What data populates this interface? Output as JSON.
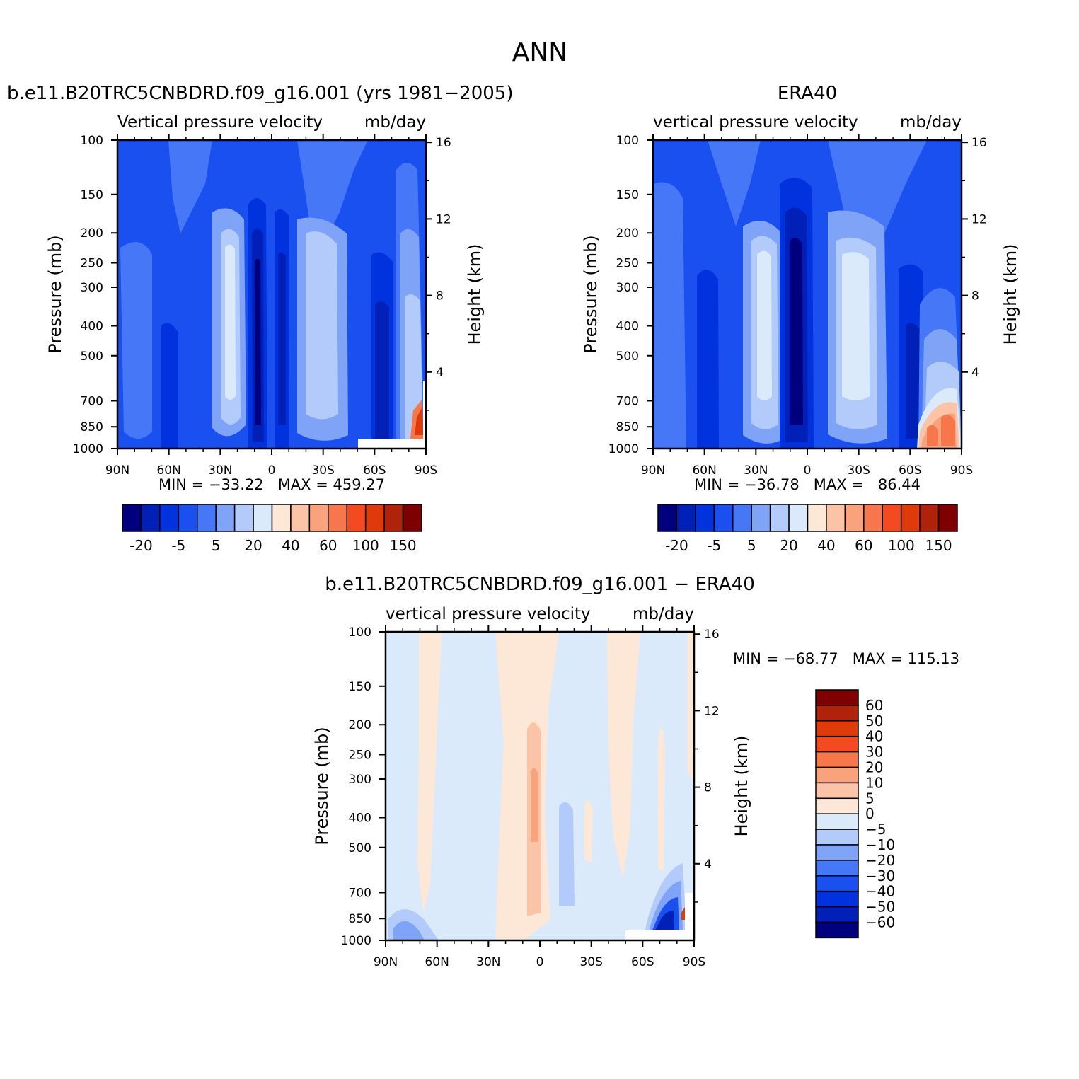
{
  "page_title": "ANN",
  "colors": {
    "scale": [
      "#00007f",
      "#0020b8",
      "#0033dd",
      "#1a4ff0",
      "#4577f7",
      "#7fa3f7",
      "#b3cbfa",
      "#daeafb",
      "#fde8d8",
      "#fcc4a6",
      "#f9a27b",
      "#f5774b",
      "#f44a1f",
      "#df3a0a",
      "#b0220a",
      "#7f0000"
    ],
    "background": "#ffffff"
  },
  "panels": {
    "model": {
      "title": "b.e11.B20TRC5CNBDRD.f09_g16.001 (yrs 1981-2005)",
      "variable": "Vertical pressure velocity",
      "units": "mb/day",
      "stats": "MIN = -33.22   MAX = 459.27",
      "ylabel": "Pressure (mb)",
      "ylabel_right": "Height (km)"
    },
    "obs": {
      "title": "ERA40",
      "variable": "vertical pressure velocity",
      "units": "mb/day",
      "stats": "MIN = -36.78   MAX =   86.44",
      "ylabel": "Pressure (mb)",
      "ylabel_right": "Height (km)"
    },
    "diff": {
      "title": "b.e11.B20TRC5CNBDRD.f09_g16.001 - ERA40",
      "variable": "vertical pressure velocity",
      "units": "mb/day",
      "stats": "MIN = -68.77   MAX = 115.13",
      "ylabel": "Pressure (mb)",
      "ylabel_right": "Height (km)"
    }
  },
  "chart_data": [
    {
      "type": "heatmap",
      "title": "b.e11.B20TRC5CNBDRD.f09_g16.001 (yrs 1981-2005)",
      "x_ticks": [
        "90N",
        "60N",
        "30N",
        "0",
        "30S",
        "60S",
        "90S"
      ],
      "y_ticks": [
        100,
        150,
        200,
        250,
        300,
        400,
        500,
        700,
        850,
        1000
      ],
      "y_scale": "log",
      "y_right_ticks": [
        16,
        12,
        8,
        4
      ],
      "min": -33.22,
      "max": 459.27,
      "colorbar_labels": [
        "-20",
        "-5",
        "5",
        "20",
        "40",
        "60",
        "100",
        "150"
      ],
      "colorbar_orientation": "horizontal"
    },
    {
      "type": "heatmap",
      "title": "ERA40",
      "x_ticks": [
        "90N",
        "60N",
        "30N",
        "0",
        "30S",
        "60S",
        "90S"
      ],
      "y_ticks": [
        100,
        150,
        200,
        250,
        300,
        400,
        500,
        700,
        850,
        1000
      ],
      "y_scale": "log",
      "y_right_ticks": [
        16,
        12,
        8,
        4
      ],
      "min": -36.78,
      "max": 86.44,
      "colorbar_labels": [
        "-20",
        "-5",
        "5",
        "20",
        "40",
        "60",
        "100",
        "150"
      ],
      "colorbar_orientation": "horizontal"
    },
    {
      "type": "heatmap",
      "title": "b.e11.B20TRC5CNBDRD.f09_g16.001 - ERA40",
      "x_ticks": [
        "90N",
        "60N",
        "30N",
        "0",
        "30S",
        "60S",
        "90S"
      ],
      "y_ticks": [
        100,
        150,
        200,
        250,
        300,
        400,
        500,
        700,
        850,
        1000
      ],
      "y_scale": "log",
      "y_right_ticks": [
        16,
        12,
        8,
        4
      ],
      "min": -68.77,
      "max": 115.13,
      "colorbar_labels": [
        "60",
        "50",
        "40",
        "30",
        "20",
        "10",
        "5",
        "0",
        "-5",
        "-10",
        "-20",
        "-30",
        "-40",
        "-50",
        "-60"
      ],
      "colorbar_orientation": "vertical"
    }
  ]
}
